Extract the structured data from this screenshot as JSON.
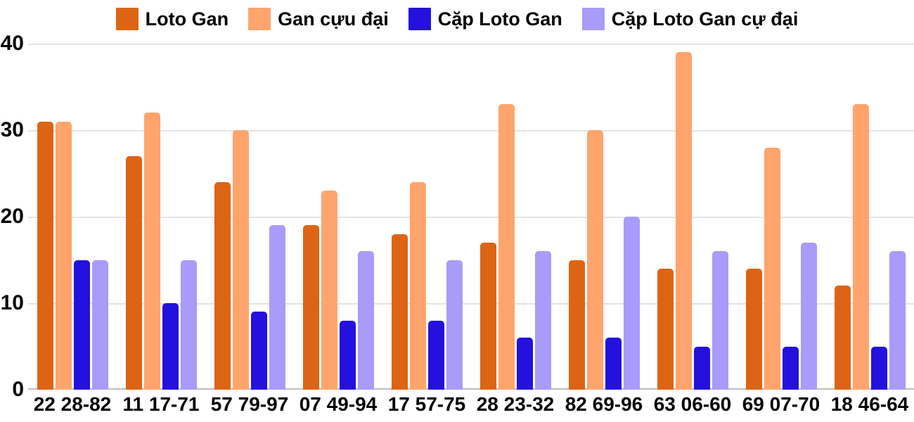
{
  "chart_data": {
    "type": "bar",
    "title": "",
    "xlabel": "",
    "ylabel": "",
    "ylim": [
      0,
      40
    ],
    "yticks": [
      0,
      10,
      20,
      30,
      40
    ],
    "grid": true,
    "legend_position": "top",
    "background_color": "#ffffff",
    "text_color": "#000000",
    "gridline_color": "#e4e4e4",
    "baseline_color": "#bdbdbd",
    "categories": [
      "22 28-82",
      "11 17-71",
      "57 79-97",
      "07 49-94",
      "17 57-75",
      "28 23-32",
      "82 69-96",
      "63 06-60",
      "69 07-70",
      "18 46-64"
    ],
    "series": [
      {
        "name": "Loto Gan",
        "color": "#dd6414",
        "values": [
          31,
          27,
          24,
          19,
          18,
          17,
          15,
          14,
          14,
          12
        ]
      },
      {
        "name": "Gan cựu đại",
        "color": "#ffa46c",
        "values": [
          31,
          32,
          30,
          23,
          24,
          33,
          30,
          39,
          28,
          33
        ]
      },
      {
        "name": "Cặp Loto Gan",
        "color": "#2411dd",
        "values": [
          15,
          10,
          9,
          8,
          8,
          6,
          6,
          5,
          5,
          5
        ]
      },
      {
        "name": "Cặp Loto Gan cự đại",
        "color": "#a89bfa",
        "values": [
          15,
          15,
          19,
          16,
          15,
          16,
          20,
          16,
          17,
          16
        ]
      }
    ]
  }
}
